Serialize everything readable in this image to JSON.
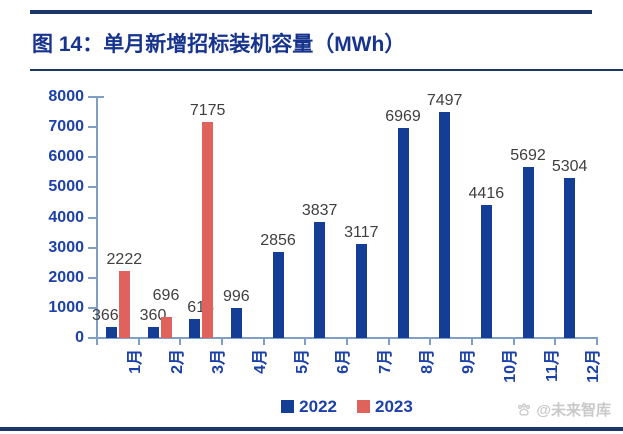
{
  "figure": {
    "title": "图 14：单月新增招标装机容量（MWh）"
  },
  "watermark": {
    "text": "@未来智库"
  },
  "colors": {
    "accent_rule": "#1B3768",
    "title_text": "#16338E",
    "axis_text": "#1C41A8",
    "axis_line": "#7F9FC6",
    "data_label": "#3F3F3F",
    "series_2022": "#143E96",
    "series_2023": "#E0625D",
    "watermark": "#C9C9C9"
  },
  "chart_data": {
    "type": "bar",
    "title": "单月新增招标装机容量（MWh）",
    "categories": [
      "1月",
      "2月",
      "3月",
      "4月",
      "5月",
      "6月",
      "7月",
      "8月",
      "9月",
      "10月",
      "11月",
      "12月"
    ],
    "series": [
      {
        "name": "2022",
        "color": "#143E96",
        "values": [
          366,
          360,
          618,
          996,
          2856,
          3837,
          3117,
          6969,
          7497,
          4416,
          5692,
          5304
        ]
      },
      {
        "name": "2023",
        "color": "#E0625D",
        "values": [
          2222,
          696,
          7175,
          null,
          null,
          null,
          null,
          null,
          null,
          null,
          null,
          null
        ]
      }
    ],
    "ylim": [
      0,
      8000
    ],
    "ytick_step": 1000,
    "yticks": [
      0,
      1000,
      2000,
      3000,
      4000,
      5000,
      6000,
      7000,
      8000
    ],
    "grid": false,
    "data_labels": true,
    "legend_position": "bottom",
    "xlabel": "",
    "ylabel": ""
  }
}
